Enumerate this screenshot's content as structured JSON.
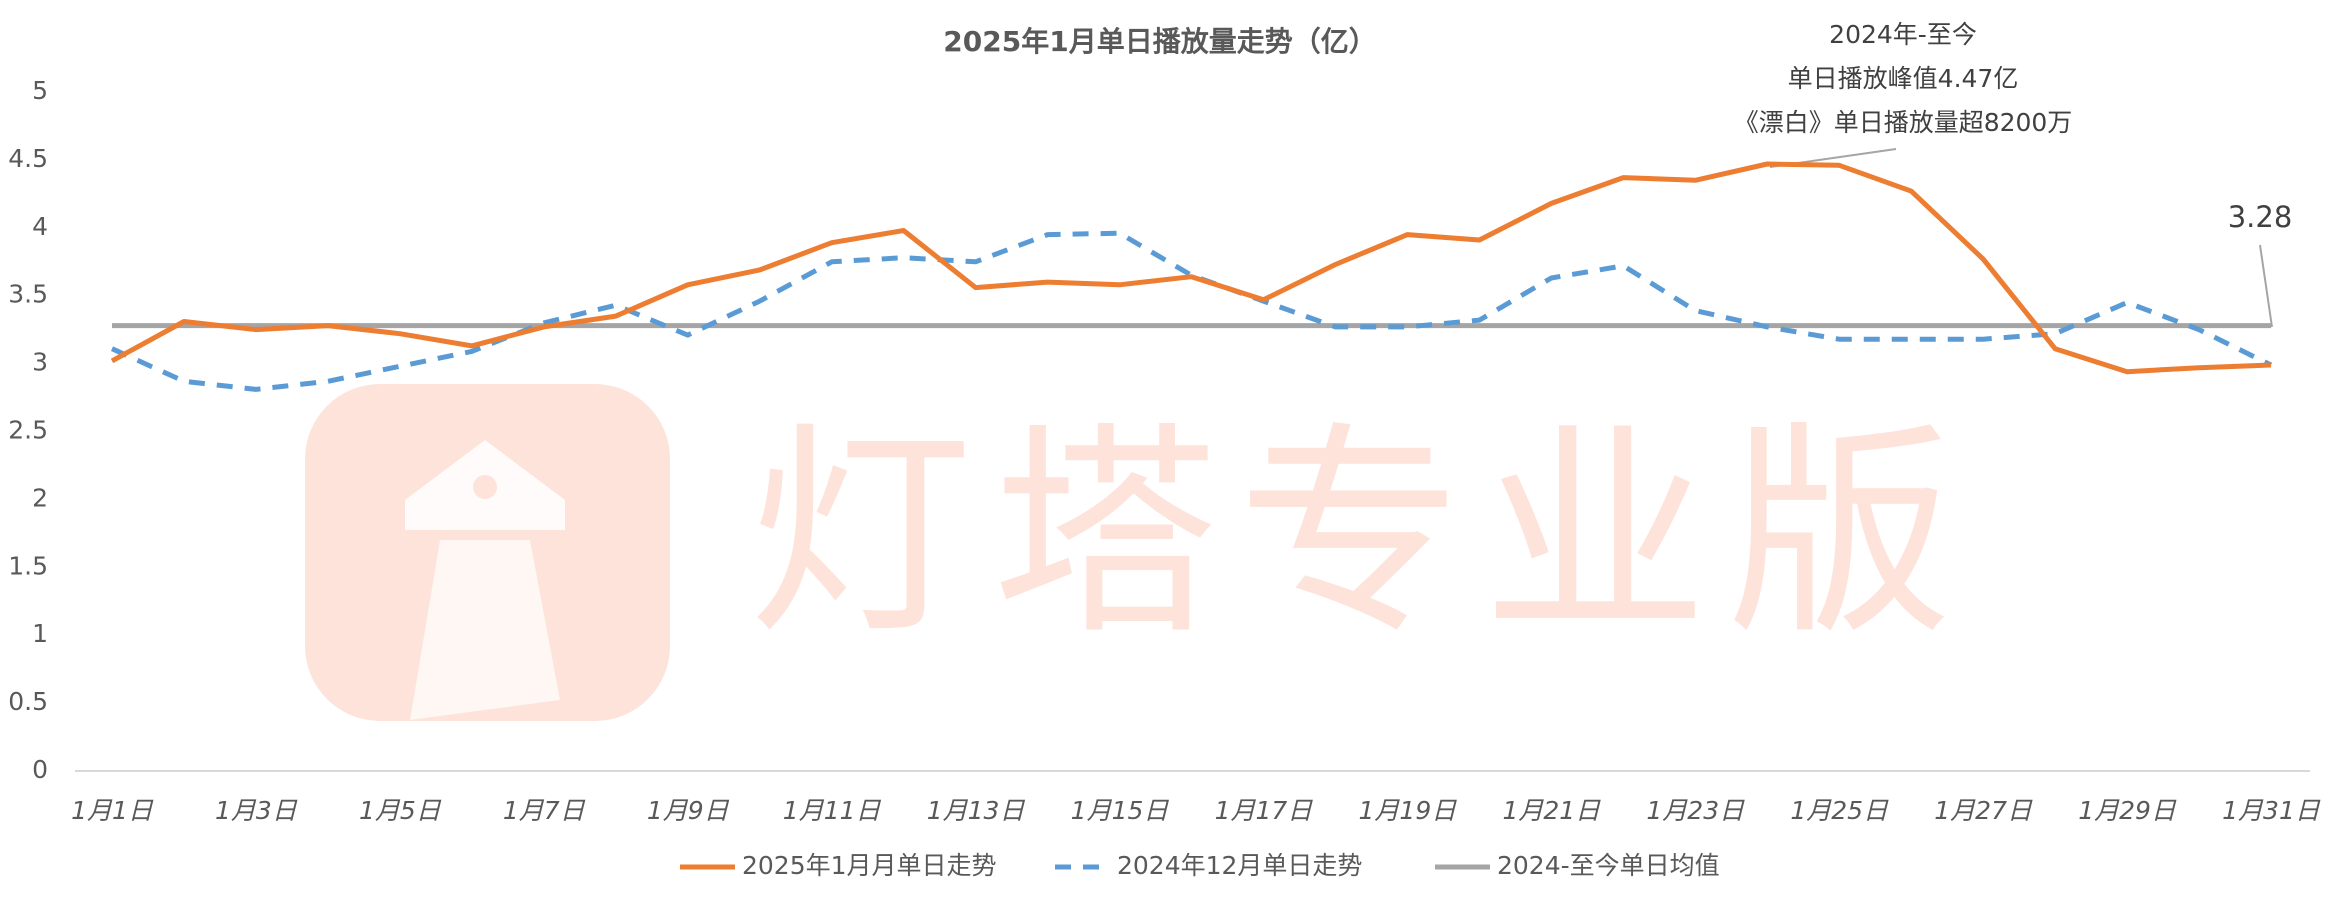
{
  "chart_data": {
    "type": "line",
    "title": "2025年1月单日播放量走势（亿）",
    "categories": [
      "1月1日",
      null,
      "1月3日",
      null,
      "1月5日",
      null,
      "1月7日",
      null,
      "1月9日",
      null,
      "1月11日",
      null,
      "1月13日",
      null,
      "1月15日",
      null,
      "1月17日",
      null,
      "1月19日",
      null,
      "1月21日",
      null,
      "1月23日",
      null,
      "1月25日",
      null,
      "1月27日",
      null,
      "1月29日",
      null,
      "1月31日"
    ],
    "series": [
      {
        "name": "2025年1月月单日走势",
        "color": "#ed7d31",
        "dashed": false,
        "values": [
          3.02,
          3.31,
          3.25,
          3.28,
          3.22,
          3.13,
          3.27,
          3.35,
          3.58,
          3.69,
          3.89,
          3.98,
          3.56,
          3.6,
          3.58,
          3.64,
          3.47,
          3.73,
          3.95,
          3.91,
          4.18,
          4.37,
          4.35,
          4.47,
          4.46,
          4.27,
          3.77,
          3.11,
          2.94,
          2.97,
          2.99
        ]
      },
      {
        "name": "2024年12月单日走势",
        "color": "#5b9bd5",
        "dashed": true,
        "values": [
          3.11,
          2.87,
          2.81,
          2.87,
          2.98,
          3.09,
          3.3,
          3.43,
          3.21,
          3.46,
          3.75,
          3.78,
          3.75,
          3.95,
          3.96,
          3.65,
          3.46,
          3.27,
          3.27,
          3.32,
          3.63,
          3.72,
          3.39,
          3.27,
          3.18,
          3.18,
          3.18,
          3.22,
          3.45,
          3.25,
          2.99
        ]
      },
      {
        "name": "2024-至今单日均值",
        "color": "#a5a5a5",
        "dashed": false,
        "values": [
          3.28,
          3.28,
          3.28,
          3.28,
          3.28,
          3.28,
          3.28,
          3.28,
          3.28,
          3.28,
          3.28,
          3.28,
          3.28,
          3.28,
          3.28,
          3.28,
          3.28,
          3.28,
          3.28,
          3.28,
          3.28,
          3.28,
          3.28,
          3.28,
          3.28,
          3.28,
          3.28,
          3.28,
          3.28,
          3.28,
          3.28
        ]
      }
    ],
    "ylim": [
      0,
      5
    ],
    "yticks": [
      0,
      0.5,
      1,
      1.5,
      2,
      2.5,
      3,
      3.5,
      4,
      4.5,
      5
    ],
    "grid": false,
    "legend": "bottom",
    "annotations": [
      {
        "lines": [
          "2024年-至今",
          "单日播放峰值4.47亿",
          "《漂白》单日播放量超8200万"
        ]
      },
      {
        "lines": [
          "3.28"
        ]
      }
    ],
    "watermark": "灯塔专业版"
  }
}
